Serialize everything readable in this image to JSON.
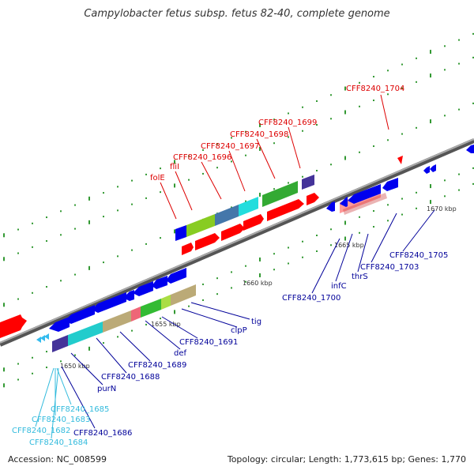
{
  "title": "Campylobacter fetus subsp. fetus 82-40, complete genome",
  "footer": {
    "accession": "Accession: NC_008599",
    "summary": "Topology: circular; Length: 1,773,615 bp; Genes: 1,770"
  },
  "colors": {
    "forward_label": "#dd0000",
    "reverse_label": "#000099",
    "other_label": "#33bbdd",
    "forward_gene": "#ff0000",
    "reverse_gene": "#0000ee",
    "backbone": "#888888",
    "tick": "#339933"
  },
  "ticks": [
    {
      "label": "1650 kbp"
    },
    {
      "label": "1655 kbp"
    },
    {
      "label": "1660 kbp"
    },
    {
      "label": "1665 kbp"
    },
    {
      "label": "1670 kbp"
    }
  ],
  "labels": {
    "forward": [
      "folE",
      "fliI",
      "CFF8240_1696",
      "CFF8240_1697",
      "CFF8240_1698",
      "CFF8240_1699",
      "CFF8240_1704"
    ],
    "reverse": [
      "CFF8240_1700",
      "infC",
      "thrS",
      "CFF8240_1703",
      "CFF8240_1705",
      "tig",
      "clpP",
      "CFF8240_1691",
      "def",
      "CFF8240_1689",
      "CFF8240_1688",
      "purN",
      "CFF8240_1686"
    ],
    "other": [
      "CFF8240_1685",
      "CFF8240_1683",
      "CFF8240_1682",
      "CFF8240_1684"
    ]
  }
}
